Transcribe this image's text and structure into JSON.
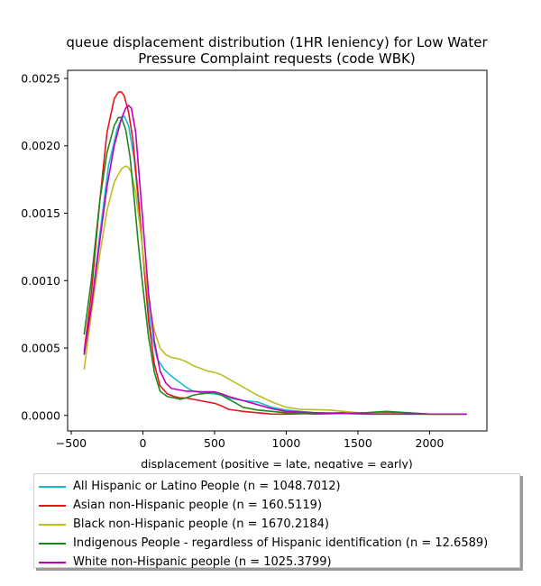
{
  "chart_data": {
    "type": "line",
    "title_line1": "queue displacement distribution (1HR leniency) for Low Water",
    "title_line2": "Pressure Complaint  requests (code WBK)",
    "xlabel": "displacement (positive = late, negative = early)",
    "ylabel": "",
    "xlim": [
      -525,
      2400
    ],
    "ylim": [
      -0.000115,
      0.00256
    ],
    "xticks": [
      -500,
      0,
      500,
      1000,
      1500,
      2000
    ],
    "xtick_labels": [
      "−500",
      "0",
      "500",
      "1000",
      "1500",
      "2000"
    ],
    "yticks": [
      0,
      0.0005,
      0.001,
      0.0015,
      0.002,
      0.0025
    ],
    "ytick_labels": [
      "0.0000",
      "0.0005",
      "0.0010",
      "0.0015",
      "0.0020",
      "0.0025"
    ],
    "grid": false,
    "legend_position": "below",
    "series": [
      {
        "name": "All Hispanic or Latino People (n = 1048.7012)",
        "color": "#17becf",
        "x": [
          -410,
          -360,
          -300,
          -240,
          -180,
          -150,
          -130,
          -100,
          -60,
          -20,
          20,
          60,
          100,
          150,
          200,
          250,
          300,
          350,
          400,
          450,
          500,
          550,
          600,
          700,
          800,
          900,
          1000,
          1200,
          1400,
          1600,
          1800,
          2000,
          2260
        ],
        "y": [
          0.00045,
          0.0008,
          0.00135,
          0.00185,
          0.00212,
          0.0022,
          0.00222,
          0.00215,
          0.0019,
          0.00145,
          0.00098,
          0.0006,
          0.00042,
          0.00034,
          0.00029,
          0.00025,
          0.00021,
          0.00018,
          0.00017,
          0.000165,
          0.00016,
          0.00015,
          0.00013,
          0.00011,
          0.0001,
          6e-05,
          4e-05,
          2e-05,
          1.5e-05,
          1e-05,
          1e-05,
          1e-05,
          1e-05
        ]
      },
      {
        "name": "Asian non-Hispanic people (n = 160.5119)",
        "color": "#e8141a",
        "x": [
          -410,
          -360,
          -300,
          -250,
          -200,
          -170,
          -150,
          -130,
          -100,
          -70,
          -30,
          0,
          40,
          80,
          120,
          170,
          220,
          260,
          300,
          350,
          400,
          450,
          500,
          550,
          600,
          700,
          800,
          900,
          1000,
          1200,
          1400,
          1600,
          1800,
          2000,
          2260
        ],
        "y": [
          0.00047,
          0.0009,
          0.0016,
          0.0021,
          0.00235,
          0.0024,
          0.0024,
          0.00237,
          0.00225,
          0.00205,
          0.0016,
          0.0012,
          0.0007,
          0.00038,
          0.00022,
          0.00016,
          0.00014,
          0.00013,
          0.00013,
          0.00012,
          0.00011,
          0.0001,
          9e-05,
          7e-05,
          4.5e-05,
          3e-05,
          2e-05,
          1e-05,
          1e-05,
          1.5e-05,
          2e-05,
          2e-05,
          2e-05,
          1e-05,
          1e-05
        ]
      },
      {
        "name": "Black non-Hispanic people (n = 1670.2184)",
        "color": "#bcbd22",
        "x": [
          -410,
          -360,
          -300,
          -250,
          -200,
          -150,
          -120,
          -100,
          -80,
          -50,
          -20,
          10,
          40,
          80,
          120,
          160,
          200,
          250,
          300,
          350,
          400,
          450,
          500,
          550,
          600,
          700,
          800,
          900,
          1000,
          1100,
          1300,
          1500,
          1700,
          1900,
          2260
        ],
        "y": [
          0.00034,
          0.00075,
          0.0012,
          0.00152,
          0.00173,
          0.00183,
          0.00185,
          0.00184,
          0.0018,
          0.00165,
          0.0014,
          0.00112,
          0.00085,
          0.00063,
          0.0005,
          0.00045,
          0.00043,
          0.00042,
          0.0004,
          0.00037,
          0.00035,
          0.00033,
          0.00032,
          0.0003,
          0.00027,
          0.00021,
          0.00015,
          0.0001,
          6e-05,
          4.5e-05,
          4e-05,
          2e-05,
          1.5e-05,
          1e-05,
          1e-05
        ]
      },
      {
        "name": "Indigenous People - regardless of Hispanic identification (n = 12.6589)",
        "color": "#1a8a1a",
        "x": [
          -410,
          -360,
          -300,
          -250,
          -200,
          -170,
          -150,
          -120,
          -90,
          -60,
          -30,
          0,
          40,
          80,
          120,
          170,
          220,
          260,
          300,
          350,
          400,
          450,
          500,
          550,
          600,
          650,
          700,
          800,
          900,
          1000,
          1200,
          1400,
          1550,
          1700,
          1850,
          2000,
          2260
        ],
        "y": [
          0.0006,
          0.001,
          0.0016,
          0.00195,
          0.00215,
          0.00221,
          0.00221,
          0.00212,
          0.00192,
          0.0016,
          0.00125,
          0.00095,
          0.00058,
          0.00032,
          0.00018,
          0.00014,
          0.00013,
          0.00012,
          0.00013,
          0.00015,
          0.00016,
          0.000165,
          0.00017,
          0.00015,
          0.00012,
          9e-05,
          6e-05,
          4e-05,
          3e-05,
          2e-05,
          1e-05,
          1.5e-05,
          2e-05,
          3e-05,
          2e-05,
          1e-05,
          1e-05
        ]
      },
      {
        "name": "White non-Hispanic people (n = 1025.3799)",
        "color": "#c000c0",
        "x": [
          -410,
          -360,
          -300,
          -250,
          -200,
          -150,
          -120,
          -100,
          -80,
          -50,
          -20,
          10,
          40,
          80,
          120,
          160,
          200,
          250,
          300,
          350,
          400,
          450,
          500,
          550,
          600,
          700,
          800,
          900,
          1000,
          1200,
          1400,
          1600,
          1800,
          2000,
          2260
        ],
        "y": [
          0.00045,
          0.0008,
          0.0013,
          0.0017,
          0.002,
          0.0022,
          0.00228,
          0.0023,
          0.00228,
          0.0021,
          0.0017,
          0.0013,
          0.0009,
          0.00055,
          0.00033,
          0.00024,
          0.0002,
          0.00019,
          0.00018,
          0.00018,
          0.000175,
          0.000175,
          0.000175,
          0.00016,
          0.00014,
          0.00011,
          8e-05,
          5e-05,
          3e-05,
          2e-05,
          1.5e-05,
          1e-05,
          1e-05,
          1e-05,
          1e-05
        ]
      }
    ]
  }
}
